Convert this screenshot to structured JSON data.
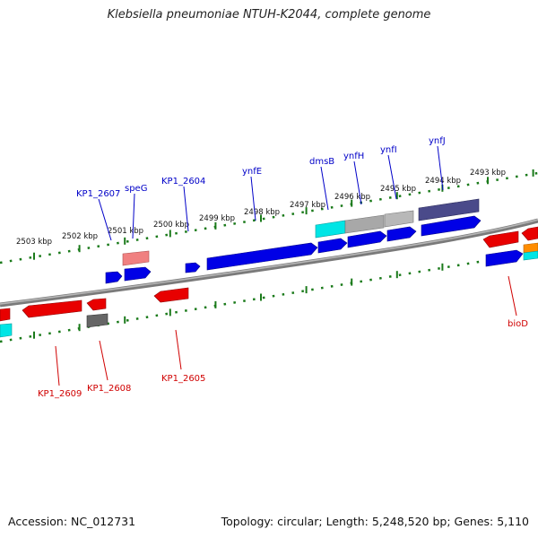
{
  "title": "Klebsiella pneumoniae NTUH-K2044, complete genome",
  "footer": {
    "accession": "Accession: NC_012731",
    "summary": "Topology: circular; Length: 5,248,520 bp; Genes: 5,110"
  },
  "colors": {
    "forward_cds": "#0000e6",
    "reverse_cds": "#e80000",
    "trna": "#00e5e5",
    "other_gene": "#a8a8a8",
    "pseudo_gene": "#f08080",
    "dark_gene": "#4a4a8a",
    "gray_gene": "#666666",
    "rrna": "#ff8c00",
    "backbone": "#808080",
    "ticks": "#1a7a1a",
    "label_forward": "#0000c8",
    "label_reverse": "#d00000"
  },
  "ruler_labels": [
    "2503 kbp",
    "2502 kbp",
    "2501 kbp",
    "2500 kbp",
    "2499 kbp",
    "2498 kbp",
    "2497 kbp",
    "2496 kbp",
    "2495 kbp",
    "2494 kbp",
    "2493 kbp"
  ],
  "genes": {
    "forward": [
      "KP1_2607",
      "speG",
      "KP1_2604",
      "ynfE",
      "dmsB",
      "ynfH",
      "ynfI",
      "ynfJ"
    ],
    "reverse": [
      "KP1_2609",
      "KP1_2608",
      "KP1_2605",
      "bioD"
    ]
  }
}
